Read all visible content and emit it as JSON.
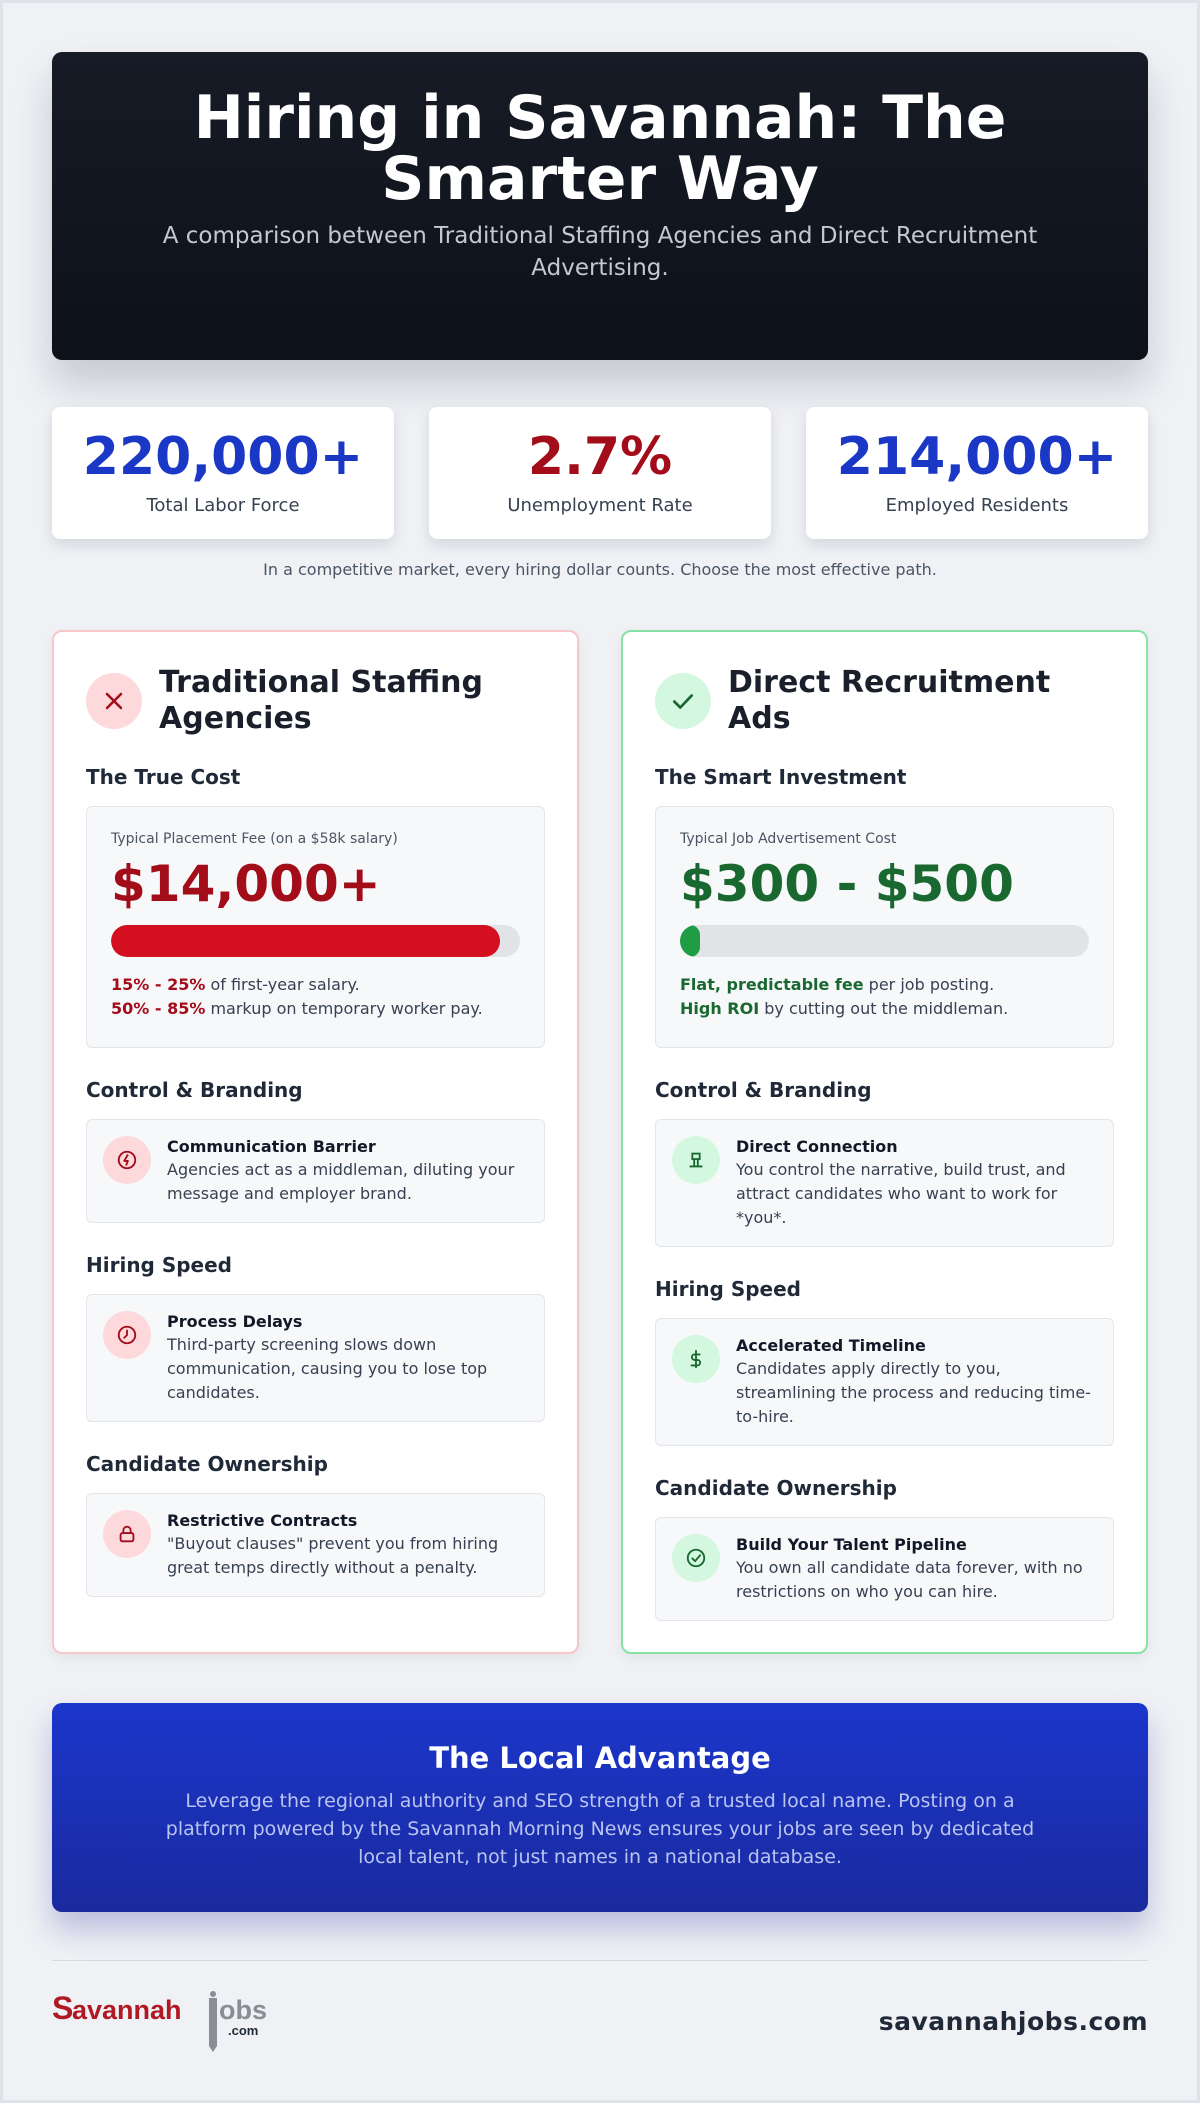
{
  "hero": {
    "title": "Hiring in Savannah: The Smarter Way",
    "subtitle": "A comparison between Traditional Staffing Agencies and Direct Recruitment Advertising."
  },
  "stats": [
    {
      "value": "220,000+",
      "label": "Total Labor Force",
      "color": "#1b37c6"
    },
    {
      "value": "2.7%",
      "label": "Unemployment Rate",
      "color": "#a30d1a"
    },
    {
      "value": "214,000+",
      "label": "Employed Residents",
      "color": "#1b37c6"
    }
  ],
  "note": "In a competitive market, every hiring dollar counts. Choose the most effective path.",
  "traditional": {
    "title": "Traditional Staffing Agencies",
    "icon": "x-icon",
    "cost_section": "The True Cost",
    "cost_sub": "Typical Placement Fee (on a $58k salary)",
    "cost_value": "$14,000+",
    "cost_bar_fraction": 0.95,
    "line1_hl": "15% - 25%",
    "line1_rest": " of first-year salary.",
    "line2_hl": "50% - 85%",
    "line2_rest": " markup on temporary worker pay.",
    "sections": [
      {
        "heading": "Control & Branding",
        "icon": "broken-link-icon",
        "title": "Communication Barrier",
        "desc": "Agencies act as a middleman, diluting your message and employer brand."
      },
      {
        "heading": "Hiring Speed",
        "icon": "clock-icon",
        "title": "Process Delays",
        "desc": "Third-party screening slows down communication, causing you to lose top candidates."
      },
      {
        "heading": "Candidate Ownership",
        "icon": "lock-icon",
        "title": "Restrictive Contracts",
        "desc": "\"Buyout clauses\" prevent you from hiring great temps directly without a penalty."
      }
    ]
  },
  "direct": {
    "title": "Direct Recruitment Ads",
    "icon": "check-icon",
    "cost_section": "The Smart Investment",
    "cost_sub": "Typical Job Advertisement Cost",
    "cost_value": "$300 - $500",
    "cost_bar_fraction": 0.05,
    "line1_hl": "Flat, predictable fee",
    "line1_rest": " per job posting.",
    "line2_hl": "High ROI",
    "line2_rest": " by cutting out the middleman.",
    "sections": [
      {
        "heading": "Control & Branding",
        "icon": "podium-icon",
        "title": "Direct Connection",
        "desc": "You control the narrative, build trust, and attract candidates who want to work for *you*."
      },
      {
        "heading": "Hiring Speed",
        "icon": "dollar-icon",
        "title": "Accelerated Timeline",
        "desc": "Candidates apply directly to you, streamlining the process and reducing time-to-hire."
      },
      {
        "heading": "Candidate Ownership",
        "icon": "check-circle-icon",
        "title": "Build Your Talent Pipeline",
        "desc": "You own all candidate data forever, with no restrictions on who you can hire."
      }
    ]
  },
  "local": {
    "title": "The Local Advantage",
    "text": "Leverage the regional authority and SEO strength of a trusted local name. Posting on a platform powered by the Savannah Morning News ensures your jobs are seen by dedicated local talent, not just names in a national database."
  },
  "footer": {
    "logo_text": "Savannahjobs.com",
    "site": "savannahjobs.com"
  }
}
